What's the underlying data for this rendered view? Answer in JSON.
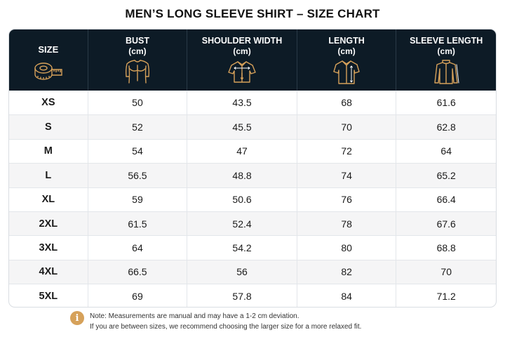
{
  "title": "MEN’S LONG SLEEVE SHIRT – SIZE CHART",
  "icon_color": "#d6a15a",
  "header_bg": "#0d1b26",
  "columns": [
    {
      "label": "SIZE",
      "unit": "",
      "icon": "measuring-tape-icon"
    },
    {
      "label": "BUST",
      "unit": "(cm)",
      "icon": "torso-icon"
    },
    {
      "label": "SHOULDER WIDTH",
      "unit": "(cm)",
      "icon": "shirt-shoulder-icon"
    },
    {
      "label": "LENGTH",
      "unit": "(cm)",
      "icon": "shirt-length-icon"
    },
    {
      "label": "SLEEVE LENGTH",
      "unit": "(cm)",
      "icon": "long-sleeve-icon"
    }
  ],
  "rows": [
    [
      "XS",
      "50",
      "43.5",
      "68",
      "61.6"
    ],
    [
      "S",
      "52",
      "45.5",
      "70",
      "62.8"
    ],
    [
      "M",
      "54",
      "47",
      "72",
      "64"
    ],
    [
      "L",
      "56.5",
      "48.8",
      "74",
      "65.2"
    ],
    [
      "XL",
      "59",
      "50.6",
      "76",
      "66.4"
    ],
    [
      "2XL",
      "61.5",
      "52.4",
      "78",
      "67.6"
    ],
    [
      "3XL",
      "64",
      "54.2",
      "80",
      "68.8"
    ],
    [
      "4XL",
      "66.5",
      "56",
      "82",
      "70"
    ],
    [
      "5XL",
      "69",
      "57.8",
      "84",
      "71.2"
    ]
  ],
  "note": {
    "icon": "info-icon",
    "symbol": "i",
    "line1": "Note: Measurements are manual and may have a 1-2 cm deviation.",
    "line2": "If you are between sizes, we recommend choosing the larger size for a more relaxed fit."
  }
}
